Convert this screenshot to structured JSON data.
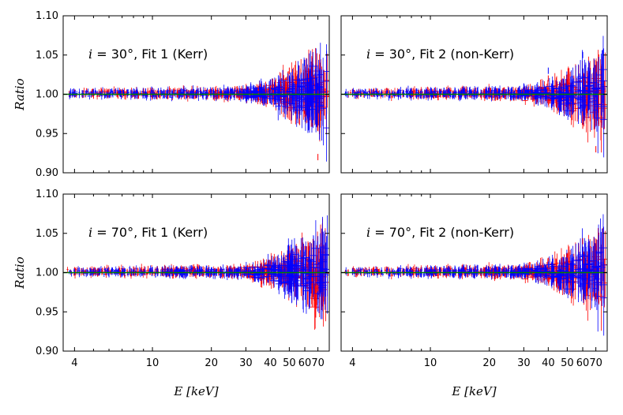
{
  "chart_data": [
    {
      "type": "scatter",
      "panel": "top-left",
      "title": "",
      "annotation": {
        "var": "i",
        "eq": " = 30°, ",
        "fit": "Fit 1 (Kerr)"
      },
      "xlabel": "E [keV]",
      "ylabel": "Ratio",
      "xscale": "log",
      "xlim": [
        3.5,
        80
      ],
      "ylim": [
        0.9,
        1.1
      ],
      "yticks": [
        "0.90",
        "0.95",
        "1.00",
        "1.05",
        "1.10"
      ],
      "xticks": [
        "4",
        "10",
        "20",
        "30",
        "40",
        "50",
        "60",
        "70"
      ],
      "reference_line": {
        "y": 1.0,
        "color": "#008000"
      },
      "series": [
        {
          "name": "red data",
          "color": "#ff0000",
          "x": [
            4,
            5,
            6,
            8,
            10,
            12,
            15,
            20,
            25,
            30,
            40,
            50,
            60,
            70
          ],
          "y": [
            1.002,
            0.999,
            1.003,
            1.001,
            1.004,
            0.998,
            1.002,
            1.003,
            1.001,
            1.004,
            1.01,
            1.03,
            0.975,
            0.92
          ]
        },
        {
          "name": "blue data",
          "color": "#0000ff",
          "x": [
            4,
            5,
            6,
            8,
            10,
            12,
            15,
            20,
            25,
            30,
            40,
            50,
            60,
            70
          ],
          "y": [
            1.0,
            1.002,
            0.999,
            1.003,
            1.001,
            1.002,
            0.999,
            1.002,
            1.004,
            1.002,
            1.015,
            1.02,
            1.04,
            1.01
          ]
        }
      ]
    },
    {
      "type": "scatter",
      "panel": "top-right",
      "title": "",
      "annotation": {
        "var": "i",
        "eq": " = 30°, ",
        "fit": "Fit 2 (non-Kerr)"
      },
      "xlabel": "E [keV]",
      "ylabel": "",
      "xscale": "log",
      "xlim": [
        3.5,
        80
      ],
      "ylim": [
        0.9,
        1.1
      ],
      "yticks": [],
      "xticks": [
        "4",
        "10",
        "20",
        "30",
        "40",
        "50",
        "60",
        "70"
      ],
      "reference_line": {
        "y": 1.0,
        "color": "#008000"
      },
      "series": [
        {
          "name": "red data",
          "color": "#ff0000",
          "x": [
            4,
            5,
            6,
            8,
            10,
            12,
            15,
            20,
            25,
            30,
            40,
            50,
            60,
            70
          ],
          "y": [
            1.003,
            1.001,
            1.004,
            1.002,
            1.003,
            1.001,
            1.005,
            1.004,
            1.003,
            1.006,
            1.02,
            1.015,
            0.96,
            0.93
          ]
        },
        {
          "name": "blue data",
          "color": "#0000ff",
          "x": [
            4,
            5,
            6,
            8,
            10,
            12,
            15,
            20,
            25,
            30,
            40,
            50,
            60,
            70
          ],
          "y": [
            1.002,
            1.003,
            1.001,
            1.004,
            1.003,
            1.002,
            1.004,
            1.006,
            1.003,
            1.01,
            1.03,
            0.985,
            1.05,
            1.0
          ]
        }
      ]
    },
    {
      "type": "scatter",
      "panel": "bottom-left",
      "title": "",
      "annotation": {
        "var": "i",
        "eq": " = 70°, ",
        "fit": "Fit 1 (Kerr)"
      },
      "xlabel": "E [keV]",
      "ylabel": "Ratio",
      "xscale": "log",
      "xlim": [
        3.5,
        80
      ],
      "ylim": [
        0.9,
        1.1
      ],
      "yticks": [
        "0.90",
        "0.95",
        "1.00",
        "1.05",
        "1.10"
      ],
      "xticks": [
        "4",
        "10",
        "20",
        "30",
        "40",
        "50",
        "60",
        "70"
      ],
      "reference_line": {
        "y": 1.0,
        "color": "#008000"
      },
      "series": [
        {
          "name": "red data",
          "color": "#ff0000",
          "x": [
            4,
            5,
            6,
            8,
            10,
            12,
            15,
            20,
            25,
            30,
            40,
            50,
            60,
            70
          ],
          "y": [
            1.003,
            1.0,
            1.002,
            1.004,
            1.001,
            1.003,
            1.002,
            0.999,
            1.003,
            1.002,
            1.01,
            1.02,
            1.03,
            0.98
          ]
        },
        {
          "name": "blue data",
          "color": "#0000ff",
          "x": [
            4,
            5,
            6,
            8,
            10,
            12,
            15,
            20,
            25,
            30,
            40,
            50,
            60,
            70
          ],
          "y": [
            1.001,
            1.002,
            0.998,
            1.0,
            1.003,
            1.001,
            0.999,
            1.002,
            1.001,
            1.004,
            1.012,
            1.005,
            1.025,
            1.0
          ]
        }
      ]
    },
    {
      "type": "scatter",
      "panel": "bottom-right",
      "title": "",
      "annotation": {
        "var": "i",
        "eq": " = 70°, ",
        "fit": "Fit 2 (non-Kerr)"
      },
      "xlabel": "E [keV]",
      "ylabel": "",
      "xscale": "log",
      "xlim": [
        3.5,
        80
      ],
      "ylim": [
        0.9,
        1.1
      ],
      "yticks": [],
      "xticks": [
        "4",
        "10",
        "20",
        "30",
        "40",
        "50",
        "60",
        "70"
      ],
      "reference_line": {
        "y": 1.0,
        "color": "#008000"
      },
      "series": [
        {
          "name": "red data",
          "color": "#ff0000",
          "x": [
            4,
            5,
            6,
            8,
            10,
            12,
            15,
            20,
            25,
            30,
            40,
            50,
            60,
            70
          ],
          "y": [
            1.002,
            1.001,
            1.003,
            1.001,
            1.002,
            1.0,
            1.003,
            1.002,
            1.004,
            1.003,
            1.015,
            1.02,
            1.04,
            0.97
          ]
        },
        {
          "name": "blue data",
          "color": "#0000ff",
          "x": [
            4,
            5,
            6,
            8,
            10,
            12,
            15,
            20,
            25,
            30,
            40,
            50,
            60,
            70
          ],
          "y": [
            1.001,
            1.0,
            1.002,
            0.999,
            1.001,
            1.002,
            1.0,
            1.003,
            1.001,
            1.002,
            1.01,
            1.015,
            1.02,
            0.995
          ]
        }
      ]
    }
  ]
}
